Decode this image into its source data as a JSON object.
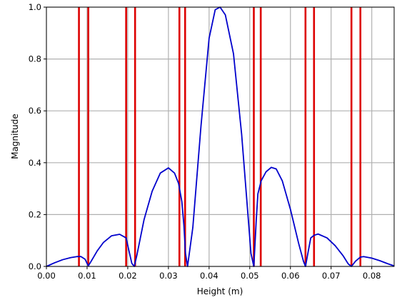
{
  "chart_data": {
    "type": "line",
    "title": "",
    "xlabel": "Height (m)",
    "ylabel": "Magnitude",
    "xlim": [
      0,
      0.0855
    ],
    "ylim": [
      0,
      1
    ],
    "xticks": [
      0.0,
      0.01,
      0.02,
      0.03,
      0.04,
      0.05,
      0.06,
      0.07,
      0.08
    ],
    "xtick_labels": [
      "0.00",
      "0.01",
      "0.02",
      "0.03",
      "0.04",
      "0.05",
      "0.06",
      "0.07",
      "0.08"
    ],
    "yticks": [
      0.0,
      0.2,
      0.4,
      0.6,
      0.8,
      1.0
    ],
    "ytick_labels": [
      "0.0",
      "0.2",
      "0.4",
      "0.6",
      "0.8",
      "1.0"
    ],
    "grid": true,
    "colors": {
      "curve": "#0000cc",
      "vlines": "#dd0000",
      "grid": "#b0b0b0"
    },
    "vertical_lines": [
      0.008,
      0.0103,
      0.0196,
      0.0218,
      0.0327,
      0.0341,
      0.051,
      0.0527,
      0.0637,
      0.0658,
      0.075,
      0.0772
    ],
    "series": [
      {
        "x": [
          0.0,
          0.002,
          0.004,
          0.006,
          0.0075,
          0.0085,
          0.0095,
          0.0103,
          0.011,
          0.0125,
          0.014,
          0.016,
          0.018,
          0.0196,
          0.0203,
          0.021,
          0.0216,
          0.0222,
          0.024,
          0.026,
          0.028,
          0.03,
          0.0315,
          0.0325,
          0.0333,
          0.0338,
          0.0342,
          0.0347,
          0.036,
          0.038,
          0.04,
          0.0415,
          0.0427,
          0.044,
          0.046,
          0.048,
          0.0495,
          0.0503,
          0.051,
          0.0516,
          0.052,
          0.0528,
          0.054,
          0.0553,
          0.0565,
          0.058,
          0.06,
          0.062,
          0.0632,
          0.0637,
          0.0644,
          0.065,
          0.0658,
          0.0668,
          0.069,
          0.071,
          0.073,
          0.0742,
          0.075,
          0.076,
          0.0772,
          0.078,
          0.08,
          0.082,
          0.084,
          0.0855
        ],
        "y": [
          0.0,
          0.014,
          0.026,
          0.034,
          0.038,
          0.038,
          0.028,
          0.002,
          0.02,
          0.06,
          0.092,
          0.118,
          0.124,
          0.11,
          0.06,
          0.012,
          0.0,
          0.04,
          0.18,
          0.29,
          0.36,
          0.38,
          0.36,
          0.32,
          0.25,
          0.16,
          0.05,
          0.0,
          0.15,
          0.54,
          0.88,
          0.99,
          1.0,
          0.97,
          0.82,
          0.51,
          0.21,
          0.05,
          0.0,
          0.18,
          0.28,
          0.33,
          0.365,
          0.382,
          0.376,
          0.33,
          0.22,
          0.09,
          0.02,
          0.0,
          0.06,
          0.11,
          0.12,
          0.125,
          0.11,
          0.08,
          0.04,
          0.01,
          0.0,
          0.02,
          0.036,
          0.038,
          0.032,
          0.022,
          0.01,
          0.002
        ]
      }
    ]
  }
}
